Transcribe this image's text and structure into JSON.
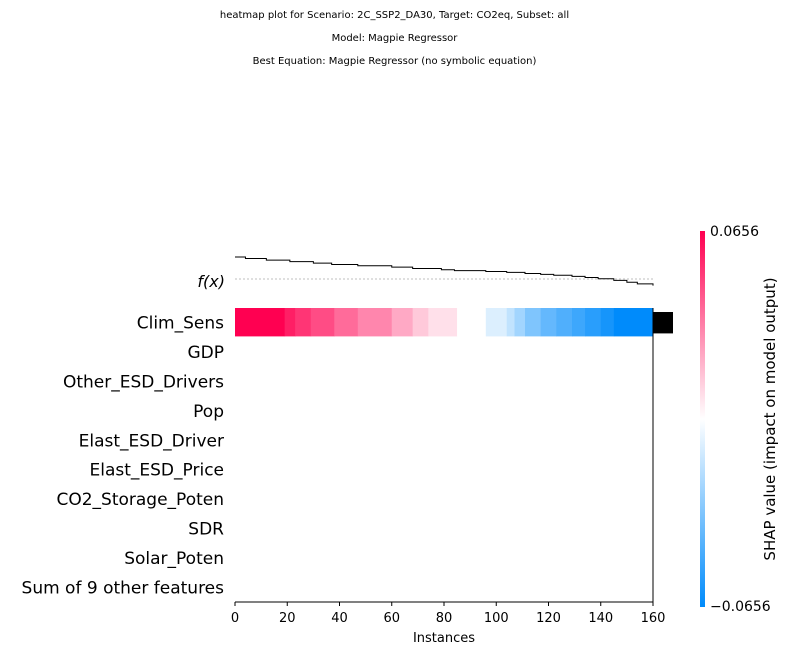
{
  "titles": [
    "heatmap plot for Scenario: 2C_SSP2_DA30, Target: CO2eq, Subset: all",
    "Model: Magpie Regressor",
    "Best Equation: Magpie Regressor (no symbolic equation)"
  ],
  "chart_data": {
    "type": "heatmap",
    "title": "heatmap plot for Scenario: 2C_SSP2_DA30, Target: CO2eq, Subset: all",
    "xlabel": "Instances",
    "xlim": [
      0,
      160
    ],
    "x_ticks": [
      0,
      20,
      40,
      60,
      80,
      100,
      120,
      140,
      160
    ],
    "fx_label": "f(x)",
    "features": [
      "Clim_Sens",
      "GDP",
      "Other_ESD_Drivers",
      "Pop",
      "Elast_ESD_Driver",
      "Elast_ESD_Price",
      "CO2_Storage_Poten",
      "SDR",
      "Solar_Poten",
      "Sum of 9 other features"
    ],
    "colorbar": {
      "label": "SHAP value (impact on model output)",
      "max": 0.0656,
      "min": -0.0656,
      "max_label": "0.0656",
      "min_label": "−0.0656",
      "colors": {
        "positive": "#ff0051",
        "zero": "#ffffff",
        "negative": "#008bfb"
      }
    },
    "clim_sens_segments": [
      {
        "x0": 0,
        "x1": 19,
        "shap": 0.0656
      },
      {
        "x0": 19,
        "x1": 23,
        "shap": 0.058
      },
      {
        "x0": 23,
        "x1": 29,
        "shap": 0.052
      },
      {
        "x0": 29,
        "x1": 38,
        "shap": 0.046
      },
      {
        "x0": 38,
        "x1": 47,
        "shap": 0.038
      },
      {
        "x0": 47,
        "x1": 60,
        "shap": 0.031
      },
      {
        "x0": 60,
        "x1": 68,
        "shap": 0.022
      },
      {
        "x0": 68,
        "x1": 74,
        "shap": 0.014
      },
      {
        "x0": 74,
        "x1": 85,
        "shap": 0.008
      },
      {
        "x0": 85,
        "x1": 96,
        "shap": 0.0
      },
      {
        "x0": 96,
        "x1": 104,
        "shap": -0.009
      },
      {
        "x0": 104,
        "x1": 107,
        "shap": -0.016
      },
      {
        "x0": 107,
        "x1": 111,
        "shap": -0.024
      },
      {
        "x0": 111,
        "x1": 117,
        "shap": -0.033
      },
      {
        "x0": 117,
        "x1": 123,
        "shap": -0.04
      },
      {
        "x0": 123,
        "x1": 129,
        "shap": -0.045
      },
      {
        "x0": 129,
        "x1": 134,
        "shap": -0.05
      },
      {
        "x0": 134,
        "x1": 140,
        "shap": -0.055
      },
      {
        "x0": 140,
        "x1": 145,
        "shap": -0.06
      },
      {
        "x0": 145,
        "x1": 160,
        "shap": -0.0656
      }
    ],
    "fx_steps": [
      {
        "x": 0,
        "y": 1.0
      },
      {
        "x": 4,
        "y": 0.93
      },
      {
        "x": 12,
        "y": 0.86
      },
      {
        "x": 21,
        "y": 0.79
      },
      {
        "x": 30,
        "y": 0.72
      },
      {
        "x": 37,
        "y": 0.66
      },
      {
        "x": 47,
        "y": 0.6
      },
      {
        "x": 60,
        "y": 0.54
      },
      {
        "x": 68,
        "y": 0.48
      },
      {
        "x": 79,
        "y": 0.42
      },
      {
        "x": 84,
        "y": 0.38
      },
      {
        "x": 96,
        "y": 0.34
      },
      {
        "x": 104,
        "y": 0.3
      },
      {
        "x": 111,
        "y": 0.25
      },
      {
        "x": 117,
        "y": 0.21
      },
      {
        "x": 122,
        "y": 0.17
      },
      {
        "x": 129,
        "y": 0.12
      },
      {
        "x": 134,
        "y": 0.07
      },
      {
        "x": 139,
        "y": 0.01
      },
      {
        "x": 145,
        "y": -0.06
      },
      {
        "x": 150,
        "y": -0.15
      },
      {
        "x": 154,
        "y": -0.22
      },
      {
        "x": 160,
        "y": -0.3
      }
    ],
    "fx_baseline": 0.0,
    "feature_importance_bar": [
      1.0,
      0,
      0,
      0,
      0,
      0,
      0,
      0,
      0,
      0
    ]
  }
}
